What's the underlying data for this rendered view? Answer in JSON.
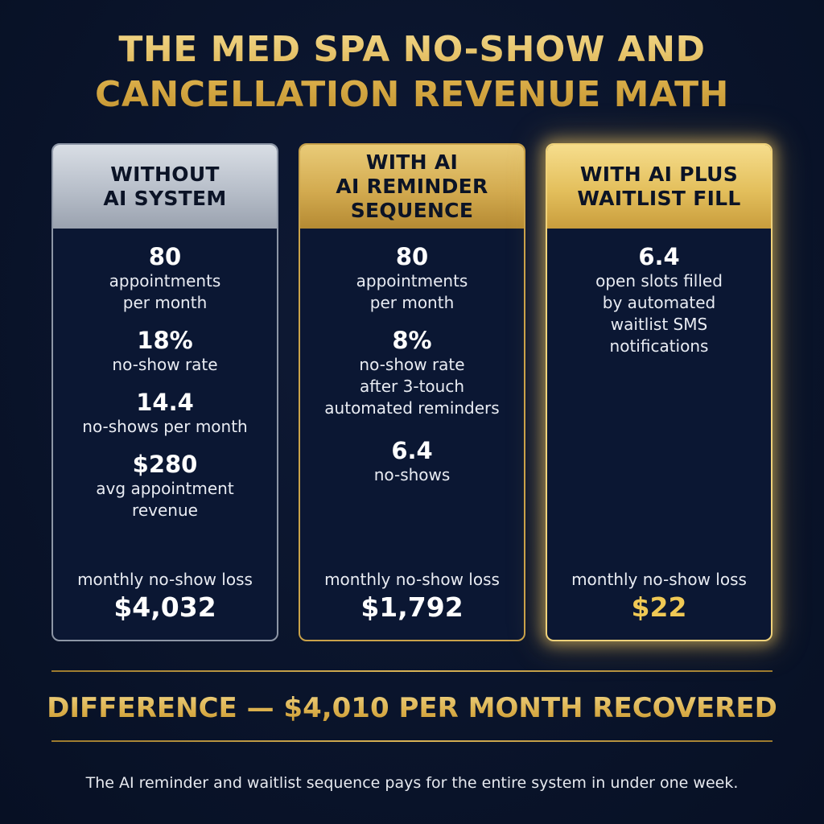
{
  "title": {
    "line1": "THE MED SPA NO-SHOW AND",
    "line2": "CANCELLATION REVENUE MATH"
  },
  "cards": [
    {
      "heading": [
        "WITHOUT",
        "AI SYSTEM"
      ],
      "stats": [
        {
          "value": "80",
          "desc": [
            "appointments",
            "per month"
          ]
        },
        {
          "value": "18%",
          "desc": [
            "no-show rate"
          ]
        },
        {
          "value": "14.4",
          "desc": [
            "no-shows per month"
          ]
        },
        {
          "value": "$280",
          "desc": [
            "avg appointment",
            "revenue"
          ]
        }
      ],
      "loss_label": "monthly no-show loss",
      "loss_value": "$4,032"
    },
    {
      "heading": [
        "WITH AI",
        "AI REMINDER",
        "SEQUENCE"
      ],
      "stats": [
        {
          "value": "80",
          "desc": [
            "appointments",
            "per month"
          ]
        },
        {
          "value": "8%",
          "desc": [
            "no-show rate",
            "after 3-touch",
            "automated reminders"
          ]
        },
        {
          "value": "6.4",
          "desc": [
            "no-shows"
          ]
        }
      ],
      "loss_label": "monthly no-show loss",
      "loss_value": "$1,792"
    },
    {
      "heading": [
        "WITH AI PLUS",
        "WAITLIST FILL"
      ],
      "stats": [
        {
          "value": "6.4",
          "desc": [
            "open slots filled",
            "by automated",
            "waitlist SMS",
            "notifications"
          ]
        }
      ],
      "loss_label": "monthly no-show loss",
      "loss_value": "$22"
    }
  ],
  "difference": "DIFFERENCE — $4,010 PER MONTH RECOVERED",
  "footer": "The AI reminder and waitlist sequence pays for the entire system in under one week.",
  "colors": {
    "background": "#0a142b",
    "gold": "#e2bc5f",
    "silver": "#b7bec9",
    "highlight_value": "#f0c955"
  }
}
